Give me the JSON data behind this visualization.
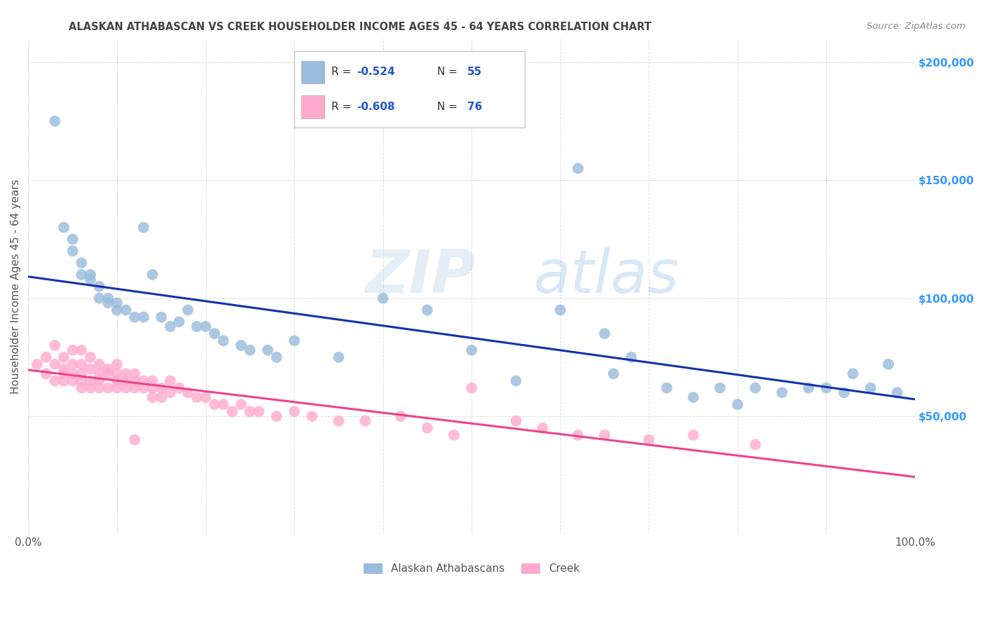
{
  "title": "ALASKAN ATHABASCAN VS CREEK HOUSEHOLDER INCOME AGES 45 - 64 YEARS CORRELATION CHART",
  "source_text": "Source: ZipAtlas.com",
  "ylabel": "Householder Income Ages 45 - 64 years",
  "xlim": [
    0.0,
    1.0
  ],
  "ylim": [
    0,
    210000
  ],
  "yticks": [
    50000,
    100000,
    150000,
    200000
  ],
  "ytick_labels": [
    "$50,000",
    "$100,000",
    "$150,000",
    "$200,000"
  ],
  "watermark_zip": "ZIP",
  "watermark_atlas": "atlas",
  "color_blue": "#99BBDD",
  "color_pink": "#FFAACC",
  "color_blue_line": "#1133AA",
  "color_pink_line": "#EE4488",
  "legend_label1": "Alaskan Athabascans",
  "legend_label2": "Creek",
  "title_color": "#444444",
  "ytick_color": "#3399FF",
  "grid_color": "#CCCCCC",
  "text_color_label": "#555555",
  "athabascan_x": [
    0.03,
    0.04,
    0.05,
    0.05,
    0.06,
    0.06,
    0.07,
    0.07,
    0.08,
    0.08,
    0.09,
    0.09,
    0.1,
    0.1,
    0.11,
    0.12,
    0.13,
    0.13,
    0.14,
    0.15,
    0.16,
    0.17,
    0.18,
    0.19,
    0.2,
    0.21,
    0.22,
    0.24,
    0.25,
    0.27,
    0.28,
    0.3,
    0.35,
    0.4,
    0.45,
    0.5,
    0.55,
    0.6,
    0.62,
    0.65,
    0.66,
    0.68,
    0.72,
    0.75,
    0.78,
    0.8,
    0.82,
    0.85,
    0.88,
    0.9,
    0.92,
    0.93,
    0.95,
    0.97,
    0.98
  ],
  "athabascan_y": [
    175000,
    130000,
    125000,
    120000,
    115000,
    110000,
    110000,
    108000,
    105000,
    100000,
    100000,
    98000,
    98000,
    95000,
    95000,
    92000,
    130000,
    92000,
    110000,
    92000,
    88000,
    90000,
    95000,
    88000,
    88000,
    85000,
    82000,
    80000,
    78000,
    78000,
    75000,
    82000,
    75000,
    100000,
    95000,
    78000,
    65000,
    95000,
    155000,
    85000,
    68000,
    75000,
    62000,
    58000,
    62000,
    55000,
    62000,
    60000,
    62000,
    62000,
    60000,
    68000,
    62000,
    72000,
    60000
  ],
  "creek_x": [
    0.01,
    0.02,
    0.02,
    0.03,
    0.03,
    0.03,
    0.04,
    0.04,
    0.04,
    0.04,
    0.05,
    0.05,
    0.05,
    0.05,
    0.06,
    0.06,
    0.06,
    0.06,
    0.06,
    0.07,
    0.07,
    0.07,
    0.07,
    0.08,
    0.08,
    0.08,
    0.08,
    0.09,
    0.09,
    0.09,
    0.1,
    0.1,
    0.1,
    0.1,
    0.11,
    0.11,
    0.11,
    0.12,
    0.12,
    0.12,
    0.13,
    0.13,
    0.14,
    0.14,
    0.14,
    0.15,
    0.15,
    0.16,
    0.16,
    0.17,
    0.18,
    0.19,
    0.2,
    0.21,
    0.22,
    0.23,
    0.24,
    0.25,
    0.26,
    0.28,
    0.3,
    0.32,
    0.35,
    0.38,
    0.42,
    0.45,
    0.48,
    0.5,
    0.55,
    0.58,
    0.62,
    0.65,
    0.7,
    0.75,
    0.82,
    0.12
  ],
  "creek_y": [
    72000,
    68000,
    75000,
    80000,
    72000,
    65000,
    75000,
    70000,
    68000,
    65000,
    78000,
    72000,
    68000,
    65000,
    78000,
    72000,
    68000,
    65000,
    62000,
    75000,
    70000,
    65000,
    62000,
    72000,
    68000,
    65000,
    62000,
    70000,
    68000,
    62000,
    72000,
    68000,
    65000,
    62000,
    68000,
    65000,
    62000,
    68000,
    65000,
    62000,
    65000,
    62000,
    65000,
    62000,
    58000,
    62000,
    58000,
    65000,
    60000,
    62000,
    60000,
    58000,
    58000,
    55000,
    55000,
    52000,
    55000,
    52000,
    52000,
    50000,
    52000,
    50000,
    48000,
    48000,
    50000,
    45000,
    42000,
    62000,
    48000,
    45000,
    42000,
    42000,
    40000,
    42000,
    38000,
    40000
  ]
}
